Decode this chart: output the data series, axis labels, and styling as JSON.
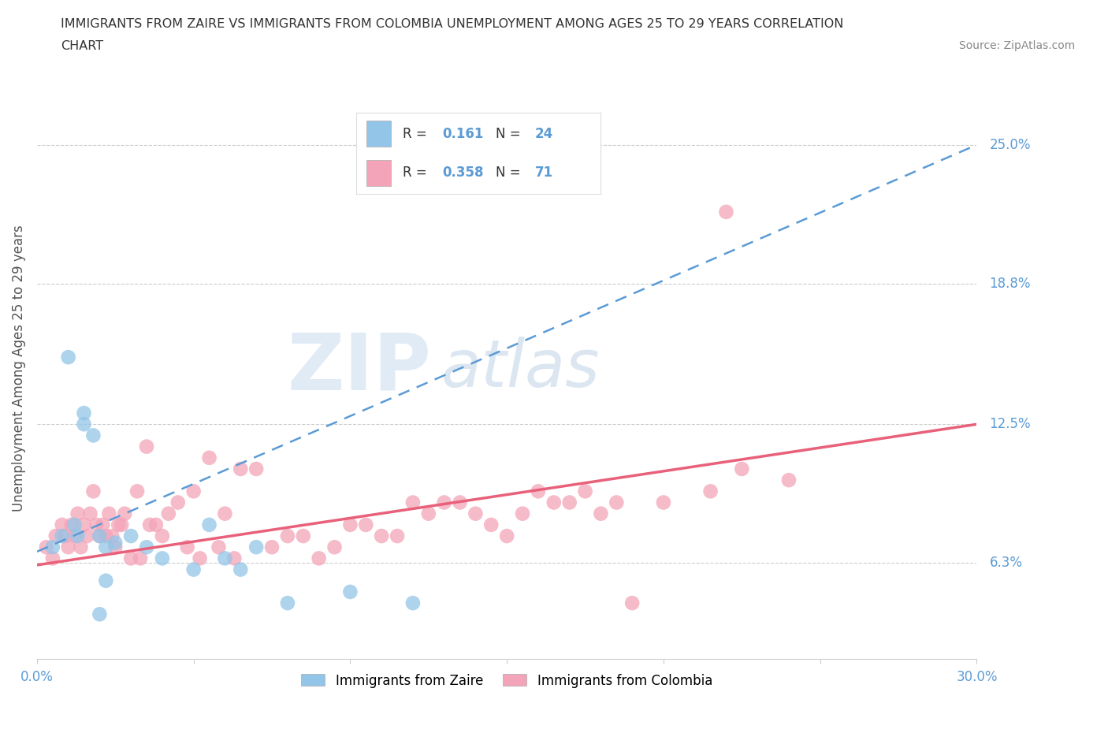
{
  "title_line1": "IMMIGRANTS FROM ZAIRE VS IMMIGRANTS FROM COLOMBIA UNEMPLOYMENT AMONG AGES 25 TO 29 YEARS CORRELATION",
  "title_line2": "CHART",
  "source": "Source: ZipAtlas.com",
  "ylabel": "Unemployment Among Ages 25 to 29 years",
  "ytick_labels": [
    "6.3%",
    "12.5%",
    "18.8%",
    "25.0%"
  ],
  "ytick_values": [
    6.3,
    12.5,
    18.8,
    25.0
  ],
  "xlim": [
    0.0,
    30.0
  ],
  "ylim": [
    2.0,
    28.0
  ],
  "R_zaire": 0.161,
  "N_zaire": 24,
  "R_colombia": 0.358,
  "N_colombia": 71,
  "color_zaire": "#92C5E8",
  "color_colombia": "#F4A4B8",
  "line_color_zaire": "#5B9BD5",
  "line_color_colombia": "#E8607A",
  "tick_label_color": "#5B9BD5",
  "background_color": "#FFFFFF",
  "zaire_x": [
    0.5,
    0.8,
    1.0,
    1.2,
    1.3,
    1.5,
    1.5,
    1.8,
    2.0,
    2.2,
    2.5,
    3.0,
    3.5,
    4.0,
    5.0,
    5.5,
    6.0,
    2.0,
    2.2,
    6.5,
    7.0,
    8.0,
    10.0,
    12.0
  ],
  "zaire_y": [
    7.0,
    7.5,
    15.5,
    8.0,
    7.5,
    13.0,
    12.5,
    12.0,
    7.5,
    7.0,
    7.2,
    7.5,
    7.0,
    6.5,
    6.0,
    8.0,
    6.5,
    4.0,
    5.5,
    6.0,
    7.0,
    4.5,
    5.0,
    4.5
  ],
  "colombia_x": [
    0.3,
    0.5,
    0.6,
    0.8,
    0.9,
    1.0,
    1.1,
    1.2,
    1.3,
    1.4,
    1.5,
    1.6,
    1.7,
    1.8,
    1.9,
    2.0,
    2.1,
    2.2,
    2.3,
    2.5,
    2.6,
    2.8,
    3.0,
    3.2,
    3.5,
    3.8,
    4.0,
    4.2,
    4.5,
    5.0,
    5.5,
    6.0,
    6.5,
    7.0,
    8.0,
    9.0,
    10.0,
    11.0,
    12.0,
    13.0,
    14.0,
    15.0,
    16.0,
    17.0,
    18.0,
    19.0,
    20.0,
    21.5,
    22.0,
    2.4,
    2.7,
    3.3,
    3.6,
    4.8,
    5.2,
    5.8,
    6.3,
    7.5,
    8.5,
    9.5,
    10.5,
    11.5,
    12.5,
    13.5,
    14.5,
    15.5,
    16.5,
    17.5,
    18.5,
    22.5,
    24.0
  ],
  "colombia_y": [
    7.0,
    6.5,
    7.5,
    8.0,
    7.5,
    7.0,
    8.0,
    7.5,
    8.5,
    7.0,
    8.0,
    7.5,
    8.5,
    9.5,
    8.0,
    7.5,
    8.0,
    7.5,
    8.5,
    7.0,
    8.0,
    8.5,
    6.5,
    9.5,
    11.5,
    8.0,
    7.5,
    8.5,
    9.0,
    9.5,
    11.0,
    8.5,
    10.5,
    10.5,
    7.5,
    6.5,
    8.0,
    7.5,
    9.0,
    9.0,
    8.5,
    7.5,
    9.5,
    9.0,
    8.5,
    4.5,
    9.0,
    9.5,
    22.0,
    7.5,
    8.0,
    6.5,
    8.0,
    7.0,
    6.5,
    7.0,
    6.5,
    7.0,
    7.5,
    7.0,
    8.0,
    7.5,
    8.5,
    9.0,
    8.0,
    8.5,
    9.0,
    9.5,
    9.0,
    10.5,
    10.0
  ],
  "watermark_zip_color": "#C8D8EC",
  "watermark_atlas_color": "#C8D8EC"
}
